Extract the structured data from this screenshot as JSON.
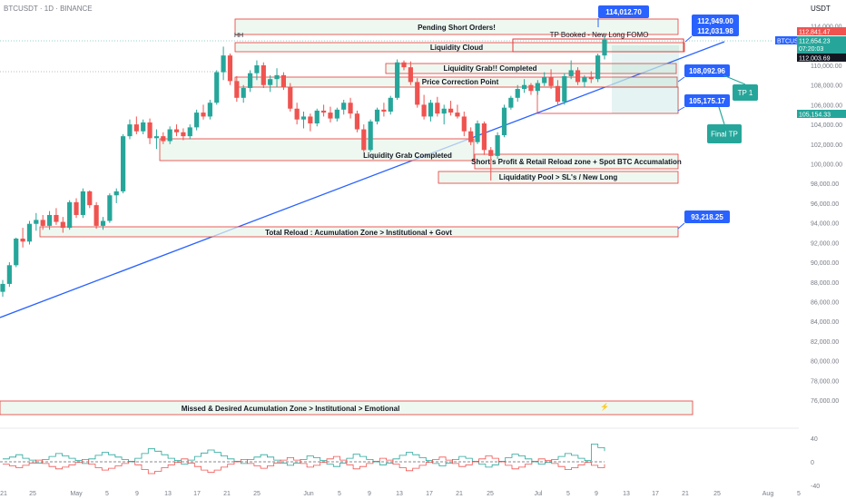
{
  "header": {
    "title": "BTCUSDT · 1D · BINANCE",
    "currency": "USDT",
    "symbol_badge": "BTCUSDT"
  },
  "colors": {
    "up": "#26a69a",
    "down": "#ef5350",
    "trendline": "#2962ff",
    "callout": "#2962ff",
    "tp_callout": "#26a69a",
    "zone_fill": "#e8f5e9",
    "zone_border": "#e53935",
    "last_price": "#26a69a",
    "sell_label": "#ef5350"
  },
  "price_panel": {
    "last_price": "112,654.23",
    "countdown": "07:20:03",
    "sell_price": "112,841.47",
    "buy_price": "112,003.69",
    "right_marker": "105,154.33"
  },
  "chart_data": {
    "type": "candlestick",
    "title": "BTCUSDT · 1D · BINANCE",
    "y_axis": {
      "ticks": [
        "76,000.00",
        "78,000.00",
        "80,000.00",
        "82,000.00",
        "84,000.00",
        "86,000.00",
        "88,000.00",
        "90,000.00",
        "92,000.00",
        "94,000.00",
        "96,000.00",
        "98,000.00",
        "100,000.00",
        "102,000.00",
        "104,000.00",
        "106,000.00",
        "108,000.00",
        "110,000.00",
        "114,000.00"
      ],
      "range": [
        75000,
        115500
      ]
    },
    "x_axis": {
      "ticks": [
        "21",
        "25",
        "May",
        "5",
        "9",
        "13",
        "17",
        "21",
        "25",
        "Jun",
        "5",
        "9",
        "13",
        "17",
        "21",
        "25",
        "Jul",
        "5",
        "9",
        "13",
        "17",
        "21",
        "25",
        "Aug",
        "5"
      ]
    },
    "candles": [
      [
        87000,
        88200,
        86500,
        87800
      ],
      [
        87800,
        90000,
        87500,
        89700
      ],
      [
        89700,
        92500,
        89500,
        92400
      ],
      [
        92400,
        93500,
        91500,
        92100
      ],
      [
        92100,
        94200,
        91800,
        93900
      ],
      [
        93900,
        95000,
        93200,
        94300
      ],
      [
        94300,
        94800,
        93300,
        93700
      ],
      [
        93700,
        95200,
        93300,
        94800
      ],
      [
        94800,
        95500,
        93800,
        94100
      ],
      [
        94100,
        94600,
        93000,
        93500
      ],
      [
        93500,
        96300,
        93300,
        96100
      ],
      [
        96100,
        96500,
        94500,
        94800
      ],
      [
        94800,
        97500,
        94500,
        97200
      ],
      [
        97200,
        97300,
        95500,
        95800
      ],
      [
        95800,
        96100,
        93400,
        93700
      ],
      [
        93700,
        94600,
        93300,
        94200
      ],
      [
        94200,
        97000,
        94000,
        96800
      ],
      [
        96800,
        97500,
        96000,
        97200
      ],
      [
        97200,
        103000,
        97000,
        102800
      ],
      [
        102800,
        104500,
        102500,
        104000
      ],
      [
        104000,
        104800,
        103000,
        103300
      ],
      [
        103300,
        104500,
        103000,
        104200
      ],
      [
        104200,
        104600,
        102000,
        102600
      ],
      [
        102600,
        103500,
        101500,
        102800
      ],
      [
        102800,
        103200,
        102000,
        102300
      ],
      [
        102300,
        103800,
        102000,
        103500
      ],
      [
        103500,
        104000,
        102800,
        103200
      ],
      [
        103200,
        103600,
        102400,
        102800
      ],
      [
        102800,
        104000,
        102500,
        103700
      ],
      [
        103700,
        105500,
        103400,
        105200
      ],
      [
        105200,
        106000,
        104500,
        104800
      ],
      [
        104800,
        106500,
        104500,
        106200
      ],
      [
        106200,
        109500,
        106000,
        109300
      ],
      [
        109300,
        111900,
        108500,
        111000
      ],
      [
        111000,
        111200,
        108000,
        108400
      ],
      [
        108400,
        108900,
        106300,
        106700
      ],
      [
        106700,
        108000,
        106200,
        107700
      ],
      [
        107700,
        109500,
        107300,
        109200
      ],
      [
        109200,
        110500,
        108500,
        110000
      ],
      [
        110000,
        110300,
        107700,
        108000
      ],
      [
        108000,
        109000,
        107300,
        108600
      ],
      [
        108600,
        109700,
        107800,
        109000
      ],
      [
        109000,
        109300,
        107500,
        107800
      ],
      [
        107800,
        108200,
        105300,
        105600
      ],
      [
        105600,
        106200,
        104000,
        104500
      ],
      [
        104500,
        105300,
        103600,
        104800
      ],
      [
        104800,
        105100,
        103300,
        104100
      ],
      [
        104100,
        105600,
        103800,
        105400
      ],
      [
        105400,
        106000,
        104800,
        105200
      ],
      [
        105200,
        105800,
        104200,
        104600
      ],
      [
        104600,
        105700,
        104300,
        105500
      ],
      [
        105500,
        106500,
        105000,
        106200
      ],
      [
        106200,
        106700,
        104600,
        105100
      ],
      [
        105100,
        105400,
        103200,
        103500
      ],
      [
        103500,
        104000,
        101200,
        101400
      ],
      [
        101400,
        104500,
        101200,
        104300
      ],
      [
        104300,
        105700,
        104000,
        105500
      ],
      [
        105500,
        106200,
        104800,
        105300
      ],
      [
        105300,
        106900,
        105000,
        106700
      ],
      [
        106700,
        110600,
        106500,
        110300
      ],
      [
        110300,
        110500,
        109500,
        109800
      ],
      [
        109800,
        110400,
        108000,
        108300
      ],
      [
        108300,
        108700,
        105700,
        106000
      ],
      [
        106000,
        107000,
        104500,
        104800
      ],
      [
        104800,
        106500,
        104300,
        106200
      ],
      [
        106200,
        106800,
        104800,
        105100
      ],
      [
        105100,
        106000,
        104000,
        105600
      ],
      [
        105600,
        106400,
        104900,
        105200
      ],
      [
        105200,
        106000,
        104600,
        104800
      ],
      [
        104800,
        105300,
        102800,
        103300
      ],
      [
        103300,
        103700,
        101900,
        102200
      ],
      [
        102200,
        104400,
        102000,
        104100
      ],
      [
        104100,
        104300,
        100900,
        101400
      ],
      [
        101400,
        101700,
        98300,
        100800
      ],
      [
        100800,
        103200,
        100500,
        102900
      ],
      [
        102900,
        106000,
        102700,
        105700
      ],
      [
        105700,
        106900,
        105500,
        106700
      ],
      [
        106700,
        108000,
        106300,
        107600
      ],
      [
        107600,
        108600,
        107200,
        108000
      ],
      [
        108000,
        108200,
        107000,
        107400
      ],
      [
        107400,
        108500,
        107000,
        108200
      ],
      [
        108200,
        109300,
        107900,
        108800
      ],
      [
        108800,
        109600,
        107600,
        107900
      ],
      [
        107900,
        108500,
        105900,
        106300
      ],
      [
        106300,
        109200,
        106000,
        108900
      ],
      [
        108900,
        110500,
        108600,
        109500
      ],
      [
        109500,
        109800,
        108000,
        108300
      ],
      [
        108300,
        109000,
        107800,
        108800
      ],
      [
        108800,
        109400,
        108200,
        108600
      ],
      [
        108600,
        111200,
        108300,
        111000
      ],
      [
        111000,
        113000,
        110600,
        112600
      ]
    ],
    "callouts": [
      "114,012.70",
      "112,949.00",
      "112,031.98",
      "108,092.96",
      "105,175.17",
      "93,218.25"
    ],
    "tp_callouts": [
      "TP 1",
      "Final TP"
    ],
    "zones": [
      {
        "label": "Pending Short Orders!"
      },
      {
        "label": "Liquidity Cloud"
      },
      {
        "label": "Liquidity Grab!! Completed"
      },
      {
        "label": "Price Correction Point"
      },
      {
        "label": "Liquidity Grab Completed"
      },
      {
        "label": "Short's Profit & Retail Reload zone + Spot BTC Accumalation"
      },
      {
        "label": "Liquidatity Pool > SL's / New Long"
      },
      {
        "label": "Total Reload : Acumulation Zone > Institutional + Govt"
      },
      {
        "label": "Missed & Desired Acumulation Zone > Institutional > Emotional"
      }
    ],
    "annotations": [
      "TP Booked -  New Long FOMO"
    ],
    "grid": false,
    "legend": "none"
  },
  "oscillator": {
    "ticks": [
      "40",
      "0",
      "-40"
    ],
    "green": [
      5,
      8,
      12,
      6,
      3,
      -2,
      4,
      9,
      14,
      10,
      6,
      2,
      -3,
      5,
      11,
      16,
      12,
      8,
      4,
      0,
      6,
      14,
      22,
      18,
      12,
      6,
      2,
      -4,
      3,
      9,
      15,
      20,
      16,
      10,
      5,
      1,
      -3,
      4,
      8,
      12,
      8,
      3,
      -2,
      -6,
      -2,
      4,
      10,
      7,
      2,
      -4,
      -8,
      -2,
      6,
      13,
      9,
      4,
      0,
      -5,
      -2,
      5,
      11,
      16,
      12,
      7,
      2,
      -3,
      -7,
      -2,
      4,
      9,
      6,
      1,
      -4,
      -9,
      -5,
      1,
      7,
      13,
      10,
      5,
      0,
      -4,
      -1,
      4,
      9,
      14,
      11,
      6,
      2,
      30,
      24,
      18
    ],
    "red": [
      -4,
      -7,
      -10,
      -6,
      -2,
      3,
      -3,
      -8,
      -12,
      -9,
      -5,
      -1,
      4,
      -4,
      -10,
      -14,
      -11,
      -7,
      -3,
      1,
      -5,
      -13,
      -20,
      -16,
      -10,
      -5,
      -1,
      5,
      -2,
      -8,
      -14,
      -18,
      -14,
      -9,
      -4,
      0,
      4,
      -3,
      -7,
      -11,
      -7,
      -2,
      3,
      7,
      3,
      -3,
      -9,
      -6,
      -1,
      5,
      9,
      3,
      -5,
      -12,
      -8,
      -3,
      1,
      6,
      3,
      -4,
      -10,
      -15,
      -11,
      -6,
      -1,
      4,
      8,
      3,
      -3,
      -8,
      -5,
      0,
      5,
      10,
      6,
      0,
      -6,
      -12,
      -9,
      -4,
      1,
      5,
      2,
      -3,
      -8,
      -13,
      -10,
      -5,
      -1,
      -6,
      -10,
      -4
    ]
  }
}
